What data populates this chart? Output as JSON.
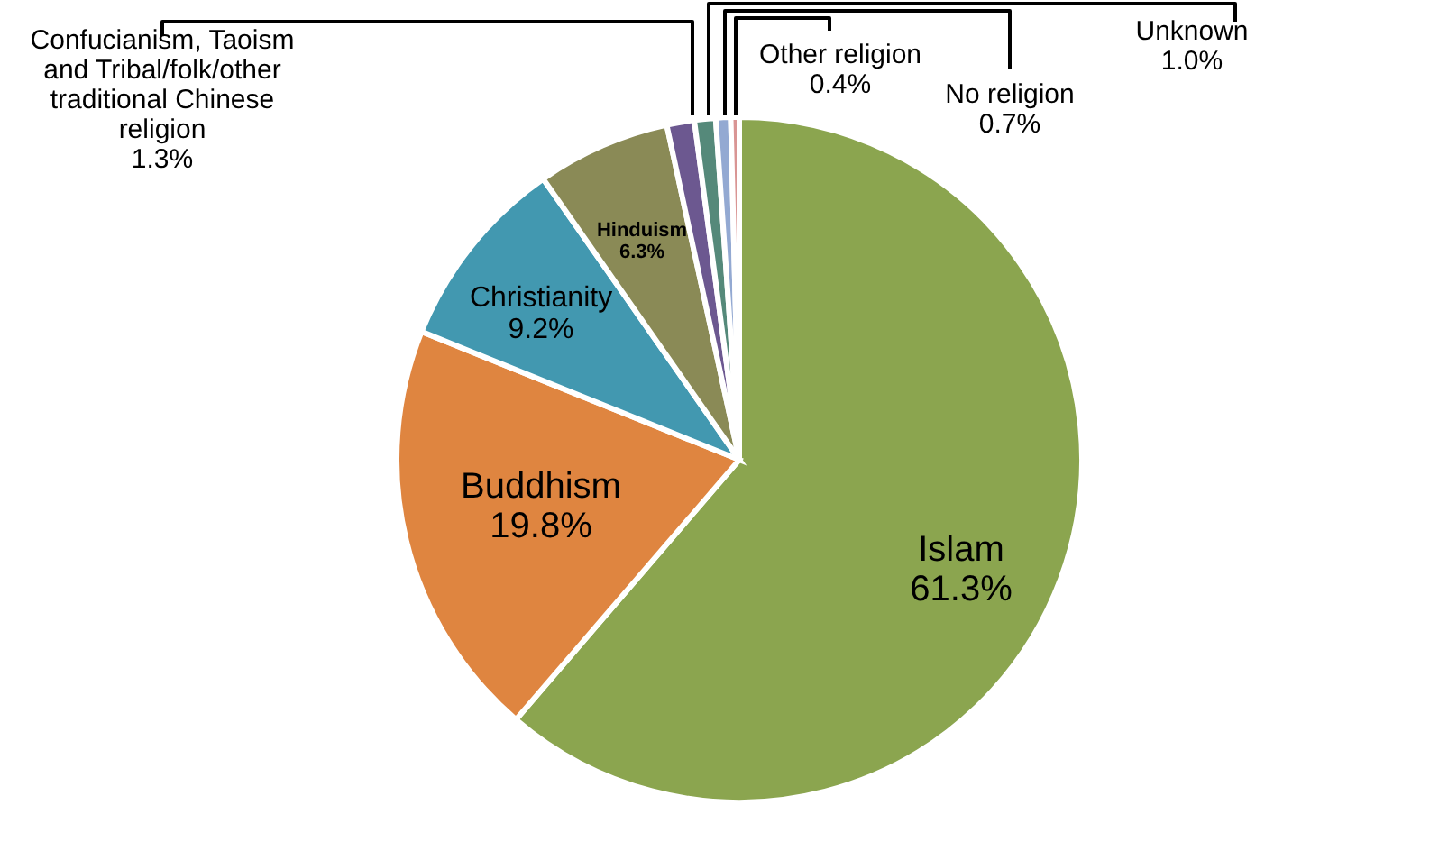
{
  "chart_data": {
    "type": "pie",
    "categories": [
      "Islam",
      "Buddhism",
      "Christianity",
      "Hinduism",
      "Confucianism, Taoism and Tribal/folk/other traditional Chinese religion",
      "Unknown",
      "No religion",
      "Other religion"
    ],
    "values": [
      61.3,
      19.8,
      9.2,
      6.3,
      1.3,
      1.0,
      0.7,
      0.4
    ],
    "value_labels": [
      "61.3%",
      "19.8%",
      "9.2%",
      "6.3%",
      "1.3%",
      "1.0%",
      "0.7%",
      "0.4%"
    ],
    "colors": [
      "#8ba54f",
      "#df8540",
      "#4298b0",
      "#8a8a56",
      "#6c5890",
      "#55897a",
      "#93a9d2",
      "#d99594"
    ]
  }
}
